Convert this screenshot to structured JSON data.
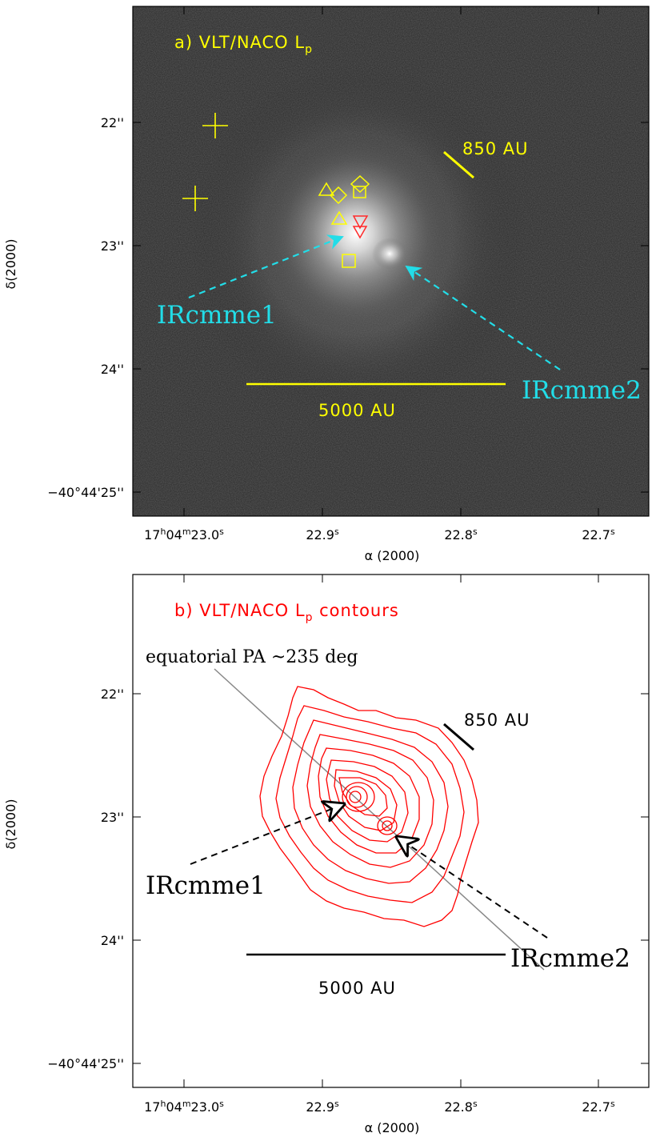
{
  "panel_a": {
    "title_main": "a) VLT/NACO L",
    "title_sub": "p",
    "scale_short": "850 AU",
    "scale_long": "5000 AU",
    "source1": "IRcmme1",
    "source2": "IRcmme2",
    "x_axis_label": "α (2000)",
    "y_axis_label": "δ(2000)",
    "colors": {
      "annot": "#ffff00",
      "arrow": "#22dde8",
      "marker_red": "#ff2a2a"
    }
  },
  "panel_b": {
    "title_main": "b) VLT/NACO L",
    "title_sub": "p",
    "title_tail": " contours",
    "equatorial_note": "equatorial PA ~235 deg",
    "scale_short": "850 AU",
    "scale_long": "5000 AU",
    "source1": "IRcmme1",
    "source2": "IRcmme2",
    "x_axis_label": "α (2000)",
    "y_axis_label": "δ(2000)",
    "colors": {
      "contour": "#ff0000",
      "pa_line": "#888888"
    }
  },
  "ra_ticks": [
    {
      "h": "17",
      "hs": "h",
      "m": "04",
      "ms": "m",
      "s": "23.0",
      "ss": "s"
    },
    {
      "s": "22.9",
      "ss": "s"
    },
    {
      "s": "22.8",
      "ss": "s"
    },
    {
      "s": "22.7",
      "ss": "s"
    }
  ],
  "dec_ticks": [
    "22''",
    "23''",
    "24''",
    "−40°44'25''"
  ]
}
